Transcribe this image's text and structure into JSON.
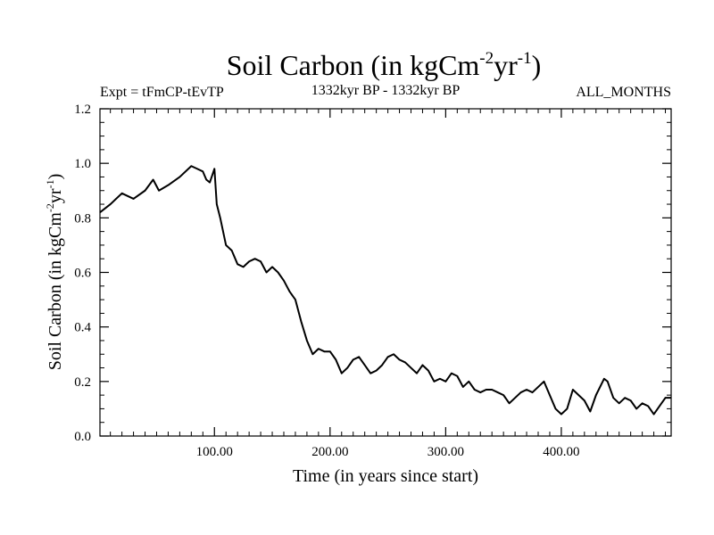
{
  "chart_data": {
    "type": "line",
    "title_main": "Soil Carbon (in kgCm",
    "title_sup1": "-2",
    "title_mid": "yr",
    "title_sup2": "-1",
    "title_end": ")",
    "subtitle_left": "Expt = tFmCP-tEvTP",
    "subtitle_center": "1332kyr BP - 1332kyr BP",
    "subtitle_right": "ALL_MONTHS",
    "xlabel": "Time (in years since start)",
    "ylabel_main": "Soil Carbon (in kgCm",
    "ylabel_sup1": "-2",
    "ylabel_mid": "yr",
    "ylabel_sup2": "-1",
    "ylabel_end": ")",
    "xlim": [
      1,
      495
    ],
    "ylim": [
      0.0,
      1.2
    ],
    "xticks": [
      100,
      200,
      300,
      400
    ],
    "xtick_labels": [
      "100.00",
      "200.00",
      "300.00",
      "400.00"
    ],
    "yticks": [
      0.0,
      0.2,
      0.4,
      0.6,
      0.8,
      1.0,
      1.2
    ],
    "ytick_labels": [
      "0.0",
      "0.2",
      "0.4",
      "0.6",
      "0.8",
      "1.0",
      "1.2"
    ],
    "series": [
      {
        "name": "Soil Carbon",
        "color": "#000000",
        "x": [
          1,
          10,
          20,
          30,
          40,
          47,
          52,
          60,
          70,
          80,
          85,
          90,
          93,
          96,
          100,
          102,
          105,
          110,
          115,
          120,
          125,
          130,
          135,
          140,
          145,
          150,
          155,
          160,
          165,
          170,
          175,
          180,
          185,
          190,
          195,
          200,
          205,
          210,
          215,
          220,
          225,
          230,
          235,
          240,
          245,
          250,
          255,
          260,
          265,
          270,
          275,
          280,
          285,
          290,
          295,
          300,
          305,
          310,
          315,
          320,
          325,
          330,
          335,
          340,
          345,
          350,
          355,
          360,
          365,
          370,
          375,
          380,
          385,
          390,
          395,
          400,
          405,
          410,
          415,
          420,
          425,
          430,
          437,
          440,
          445,
          450,
          455,
          460,
          465,
          470,
          475,
          480,
          485,
          490,
          495
        ],
        "values": [
          0.82,
          0.85,
          0.89,
          0.87,
          0.9,
          0.94,
          0.9,
          0.92,
          0.95,
          0.99,
          0.98,
          0.97,
          0.94,
          0.93,
          0.98,
          0.85,
          0.8,
          0.7,
          0.68,
          0.63,
          0.62,
          0.64,
          0.65,
          0.64,
          0.6,
          0.62,
          0.6,
          0.57,
          0.53,
          0.5,
          0.42,
          0.35,
          0.3,
          0.32,
          0.31,
          0.31,
          0.28,
          0.23,
          0.25,
          0.28,
          0.29,
          0.26,
          0.23,
          0.24,
          0.26,
          0.29,
          0.3,
          0.28,
          0.27,
          0.25,
          0.23,
          0.26,
          0.24,
          0.2,
          0.21,
          0.2,
          0.23,
          0.22,
          0.18,
          0.2,
          0.17,
          0.16,
          0.17,
          0.17,
          0.16,
          0.15,
          0.12,
          0.14,
          0.16,
          0.17,
          0.16,
          0.18,
          0.2,
          0.15,
          0.1,
          0.08,
          0.1,
          0.17,
          0.15,
          0.13,
          0.09,
          0.15,
          0.21,
          0.2,
          0.14,
          0.12,
          0.14,
          0.13,
          0.1,
          0.12,
          0.11,
          0.08,
          0.11,
          0.14,
          0.14
        ]
      }
    ]
  }
}
